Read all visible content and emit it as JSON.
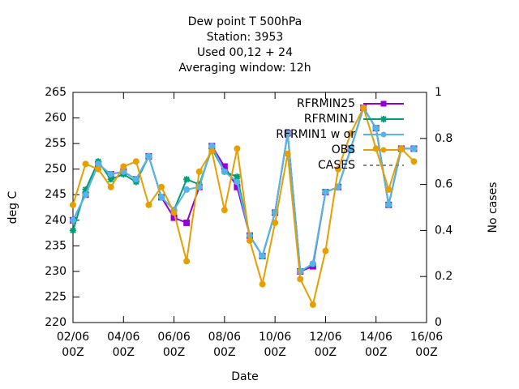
{
  "chart_data": {
    "type": "line",
    "title": [
      "Dew point T 500hPa",
      "Station:      3953",
      "Used  00,12  + 24",
      "Averaging window: 12h"
    ],
    "xlabel": "Date",
    "ylabel": "deg C",
    "y2label": "No cases",
    "x": [
      "02/06 00Z",
      "02/06 12Z",
      "03/06 00Z",
      "03/06 12Z",
      "04/06 00Z",
      "04/06 12Z",
      "05/06 00Z",
      "05/06 12Z",
      "06/06 00Z",
      "06/06 12Z",
      "07/06 00Z",
      "07/06 12Z",
      "08/06 00Z",
      "08/06 12Z",
      "09/06 00Z",
      "09/06 12Z",
      "10/06 00Z",
      "10/06 12Z",
      "11/06 00Z",
      "11/06 12Z",
      "12/06 00Z",
      "12/06 12Z",
      "13/06 00Z",
      "13/06 12Z",
      "14/06 00Z",
      "14/06 12Z",
      "15/06 00Z",
      "15/06 12Z"
    ],
    "xlim": [
      "02/06 00Z",
      "16/06 00Z"
    ],
    "xticks": [
      {
        "value": "02/06 00Z",
        "label": [
          "02/06",
          "00Z"
        ]
      },
      {
        "value": "04/06 00Z",
        "label": [
          "04/06",
          "00Z"
        ]
      },
      {
        "value": "06/06 00Z",
        "label": [
          "06/06",
          "00Z"
        ]
      },
      {
        "value": "08/06 00Z",
        "label": [
          "08/06",
          "00Z"
        ]
      },
      {
        "value": "10/06 00Z",
        "label": [
          "10/06",
          "00Z"
        ]
      },
      {
        "value": "12/06 00Z",
        "label": [
          "12/06",
          "00Z"
        ]
      },
      {
        "value": "14/06 00Z",
        "label": [
          "14/06",
          "00Z"
        ]
      },
      {
        "value": "16/06 00Z",
        "label": [
          "16/06",
          "00Z"
        ]
      }
    ],
    "ylim": [
      220,
      265
    ],
    "yticks": [
      220,
      225,
      230,
      235,
      240,
      245,
      250,
      255,
      260,
      265
    ],
    "y2lim": [
      0,
      1
    ],
    "y2ticks": [
      0,
      0.2,
      0.4,
      0.6,
      0.8,
      1
    ],
    "legend": "top-right",
    "series": [
      {
        "name": "RFRMIN25",
        "color": "#9400d3",
        "marker": "square",
        "values": [
          240,
          245,
          251,
          249,
          249.5,
          248,
          252.5,
          244.5,
          240.5,
          239.5,
          246.5,
          254.5,
          250.5,
          246.5,
          237,
          233,
          241.5,
          257,
          230,
          231,
          245.5,
          246.5,
          254,
          262,
          258,
          243,
          254,
          254
        ]
      },
      {
        "name": "RFRMIN1",
        "color": "#009e73",
        "marker": "star",
        "values": [
          238,
          246,
          251.5,
          248,
          249,
          247.5,
          252.5,
          244.5,
          242,
          248,
          247,
          254,
          249.5,
          248.5,
          237,
          233,
          241.5,
          257,
          230,
          231.5,
          245.5,
          246.5,
          254,
          262,
          258,
          243,
          254,
          254
        ]
      },
      {
        "name": "RFRMIN1 w or",
        "color": "#56b4e9",
        "marker": "circle",
        "values": [
          240,
          245,
          251,
          249,
          249.5,
          248,
          252.5,
          244.5,
          242,
          246,
          246.5,
          254.5,
          249.5,
          247.5,
          237,
          233,
          241.5,
          257,
          230,
          231.5,
          245.5,
          246.5,
          254,
          262,
          258,
          243,
          254,
          254
        ]
      },
      {
        "name": "OBS",
        "color": "#e69f00",
        "marker": "circle",
        "values": [
          243,
          251,
          250,
          246.5,
          250.5,
          251.5,
          243,
          246.5,
          241.5,
          232,
          249.5,
          253.5,
          242,
          254,
          236,
          227.5,
          239.5,
          253,
          228.5,
          223.5,
          234,
          250,
          257,
          262,
          254,
          246,
          254,
          251.5
        ]
      },
      {
        "name": "CASES",
        "color": "#888888",
        "dash": true,
        "axis": "y2",
        "values": [
          null,
          null,
          null,
          null,
          null,
          null,
          null,
          null,
          null,
          null,
          null,
          null,
          null,
          null,
          null,
          null,
          null,
          null,
          null,
          null,
          null,
          null,
          null,
          null,
          null,
          null,
          null,
          null
        ]
      }
    ]
  }
}
